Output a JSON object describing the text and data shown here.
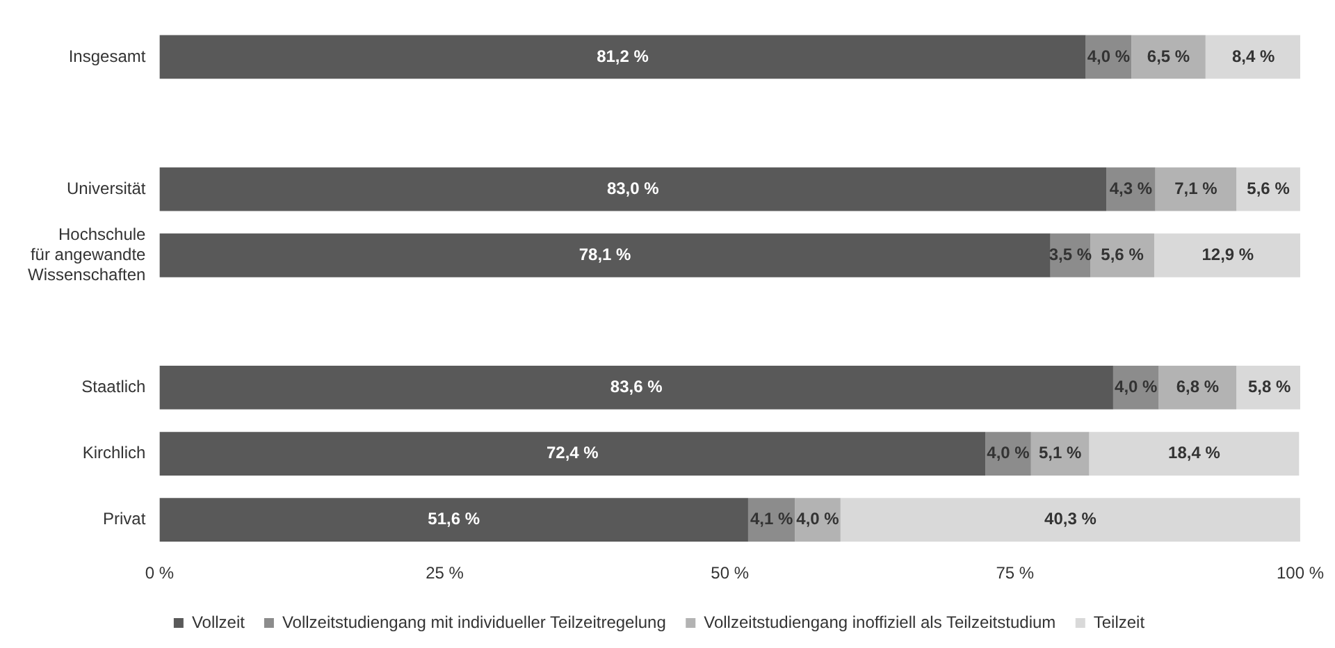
{
  "chart_data": {
    "type": "bar",
    "orientation": "horizontal",
    "stacked": true,
    "grid": false,
    "legend": "bottom",
    "xlim": [
      0,
      100
    ],
    "xticks": [
      {
        "value": 0,
        "label": "0 %"
      },
      {
        "value": 25,
        "label": "25 %"
      },
      {
        "value": 50,
        "label": "50 %"
      },
      {
        "value": 75,
        "label": "75 %"
      },
      {
        "value": 100,
        "label": "100 %"
      }
    ],
    "categories": [
      "Insgesamt",
      null,
      "Universität",
      "Hochschule\nfür angewandte\nWissenschaften",
      null,
      "Staatlich",
      "Kirchlich",
      "Privat"
    ],
    "series": [
      {
        "name": "Vollzeit",
        "color": "#595959",
        "values": [
          81.2,
          null,
          83.0,
          78.1,
          null,
          83.6,
          72.4,
          51.6
        ],
        "value_labels": [
          "81,2 %",
          null,
          "83,0 %",
          "78,1 %",
          null,
          "83,6 %",
          "72,4 %",
          "51,6 %"
        ]
      },
      {
        "name": "Vollzeitstudiengang mit individueller Teilzeitregelung",
        "color": "#8c8c8c",
        "values": [
          4.0,
          null,
          4.3,
          3.5,
          null,
          4.0,
          4.0,
          4.1
        ],
        "value_labels": [
          "4,0 %",
          null,
          "4,3 %",
          "3,5 %",
          null,
          "4,0 %",
          "4,0 %",
          "4,1 %"
        ]
      },
      {
        "name": "Vollzeitstudiengang inoffiziell als Teilzeitstudium",
        "color": "#b3b3b3",
        "values": [
          6.5,
          null,
          7.1,
          5.6,
          null,
          6.8,
          5.1,
          4.0
        ],
        "value_labels": [
          "6,5 %",
          null,
          "7,1 %",
          "5,6 %",
          null,
          "6,8 %",
          "5,1 %",
          "4,0 %"
        ]
      },
      {
        "name": "Teilzeit",
        "color": "#d9d9d9",
        "values": [
          8.4,
          null,
          5.6,
          12.9,
          null,
          5.8,
          18.4,
          40.3
        ],
        "value_labels": [
          "8,4 %",
          null,
          "5,6 %",
          "12,9 %",
          null,
          "5,8 %",
          "18,4 %",
          "40,3 %"
        ]
      }
    ]
  }
}
